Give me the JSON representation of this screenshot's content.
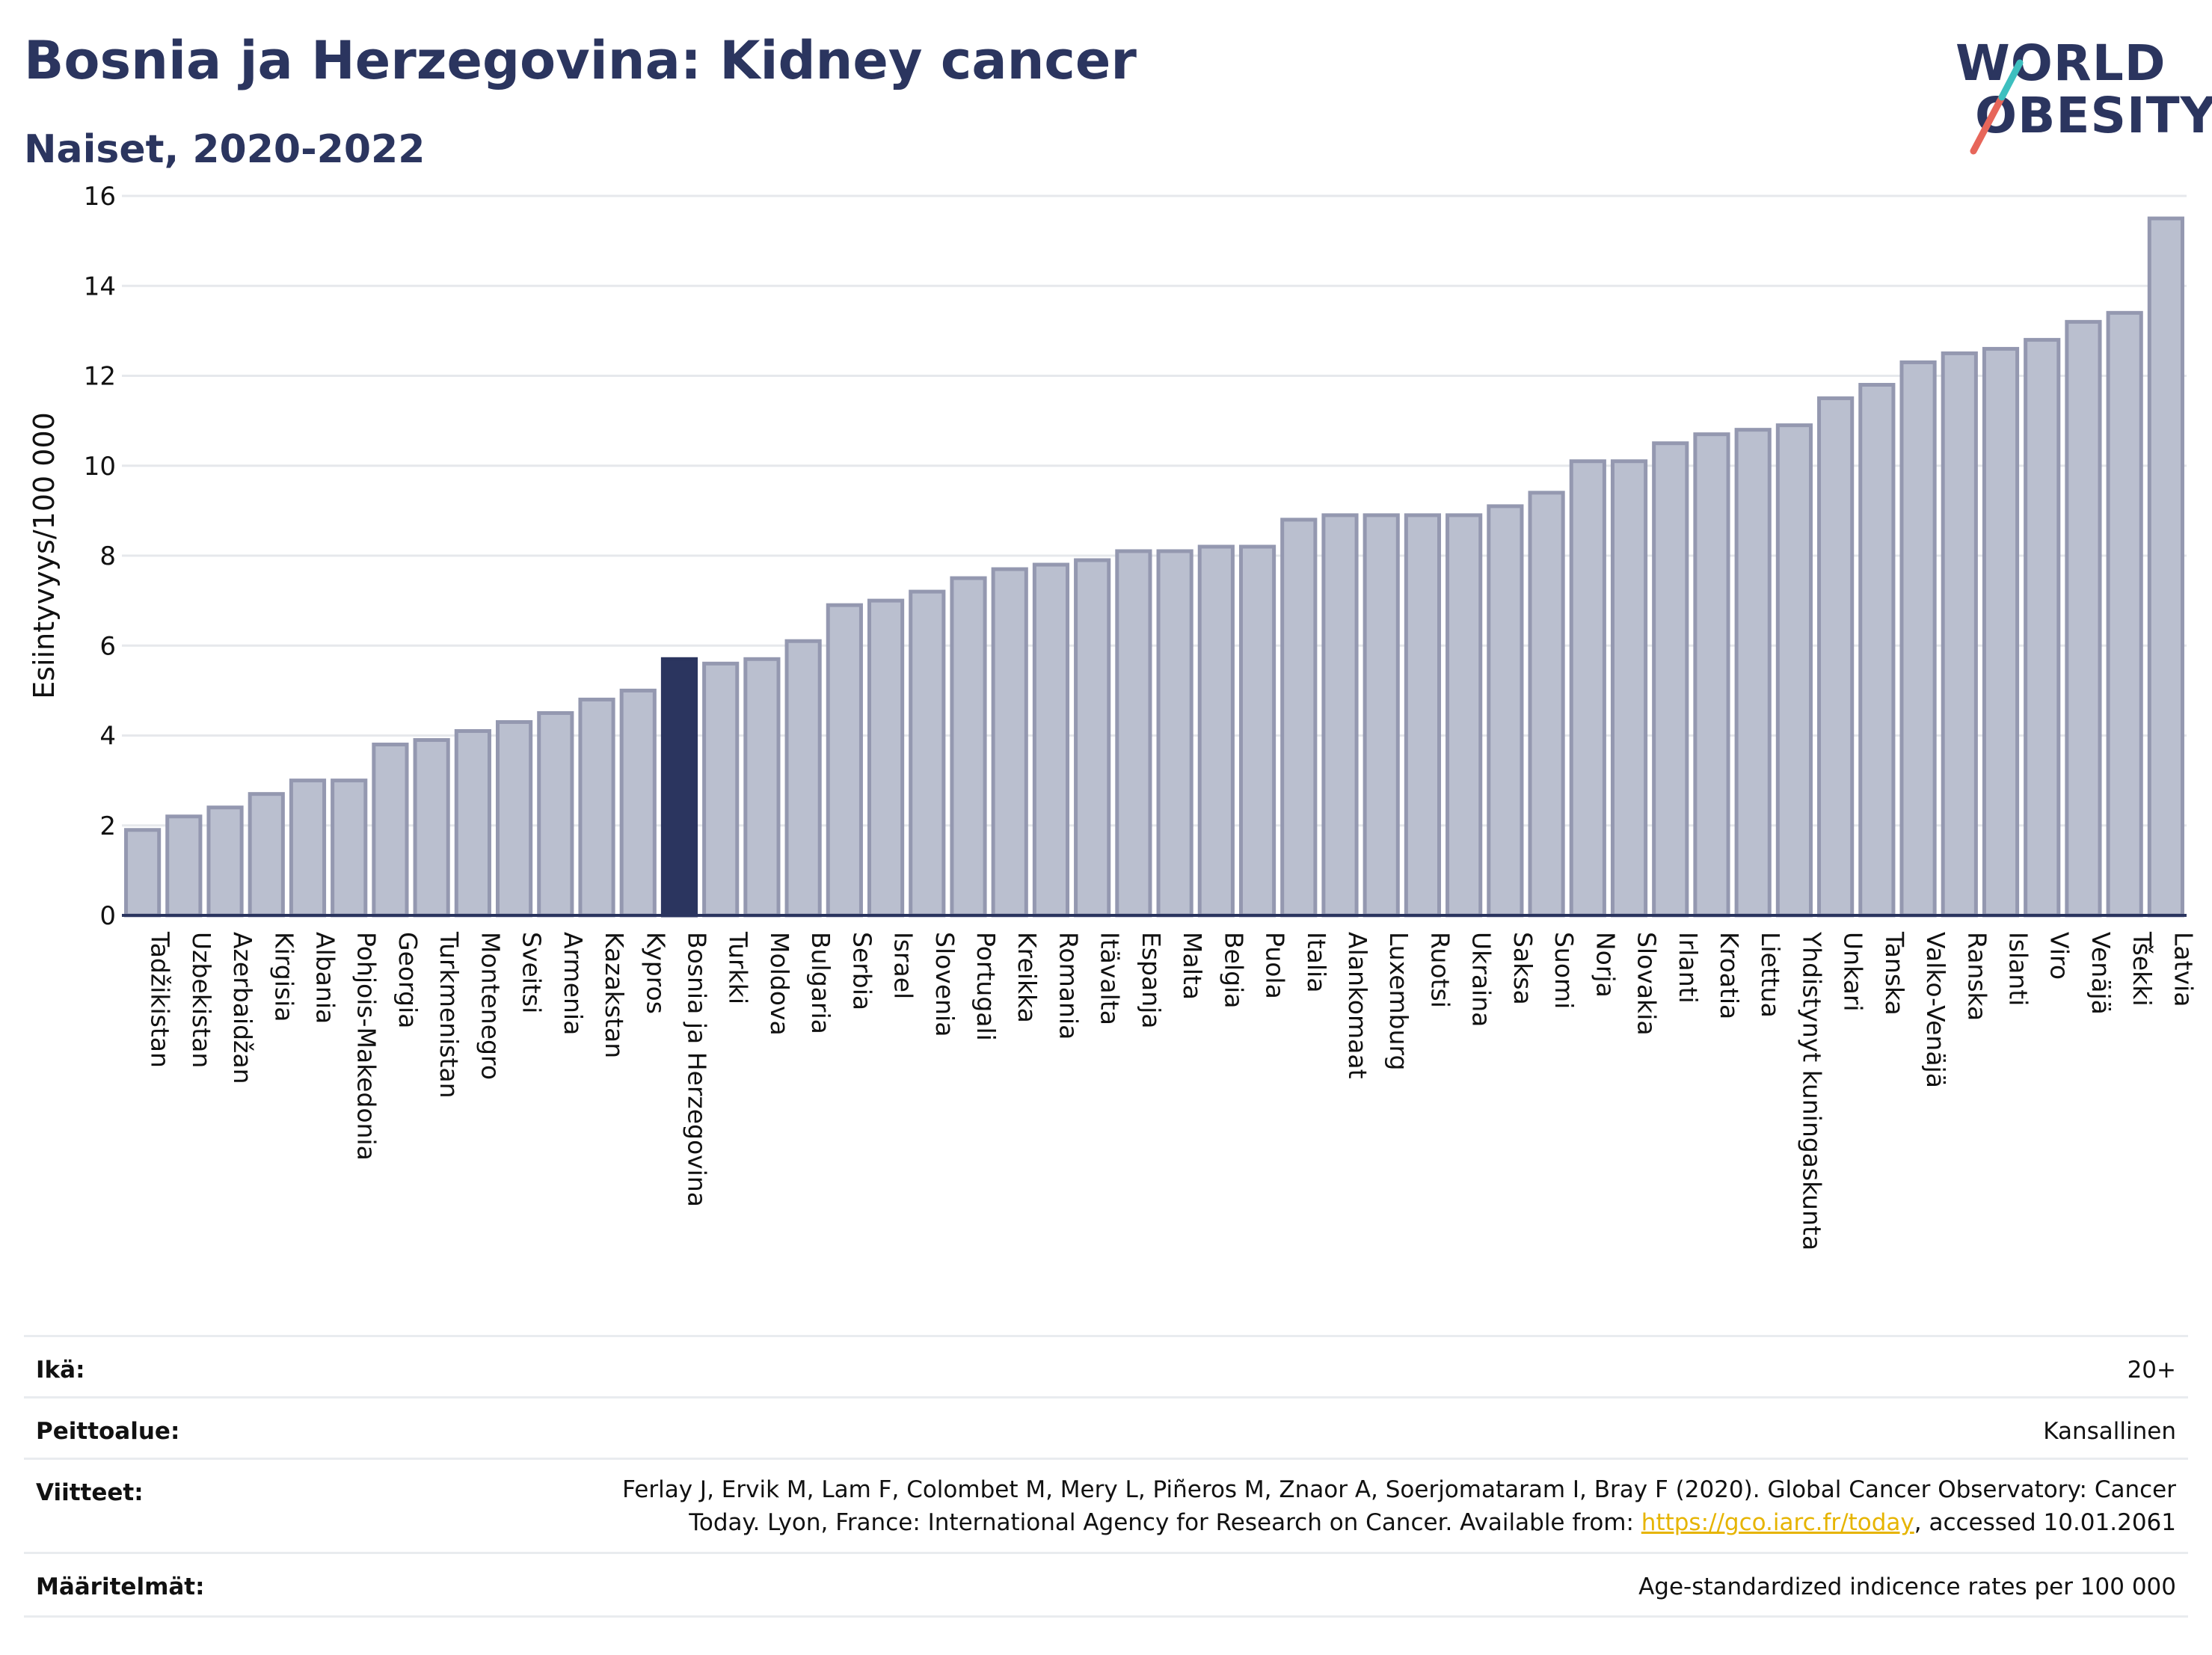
{
  "header": {
    "title": "Bosnia ja Herzegovina: Kidney cancer",
    "subtitle": "Naiset, 2020-2022"
  },
  "logo": {
    "line1": "WORLD",
    "line2": "OBESITY",
    "accent_colors": [
      "#e7665a",
      "#3dbfbf"
    ]
  },
  "colors": {
    "bar": "#babfcf",
    "bar_border": "#9498b0",
    "highlight": "#2b355f",
    "grid": "#e6e8ec",
    "axis": "#2b355f"
  },
  "chart_data": {
    "type": "bar",
    "ylabel": "Esiintyvyys/100 000",
    "xlabel": "",
    "ylim": [
      0,
      16
    ],
    "yticks": [
      0,
      2,
      4,
      6,
      8,
      10,
      12,
      14,
      16
    ],
    "grid": true,
    "highlight": "Bosnia ja Herzegovina",
    "categories": [
      "Tadžikistan",
      "Uzbekistan",
      "Azerbaidžan",
      "Kirgisia",
      "Albania",
      "Pohjois-Makedonia",
      "Georgia",
      "Turkmenistan",
      "Montenegro",
      "Sveitsi",
      "Armenia",
      "Kazakstan",
      "Kypros",
      "Bosnia ja Herzegovina",
      "Turkki",
      "Moldova",
      "Bulgaria",
      "Serbia",
      "Israel",
      "Slovenia",
      "Portugali",
      "Kreikka",
      "Romania",
      "Itävalta",
      "Espanja",
      "Malta",
      "Belgia",
      "Puola",
      "Italia",
      "Alankomaat",
      "Luxemburg",
      "Ruotsi",
      "Ukraina",
      "Saksa",
      "Suomi",
      "Norja",
      "Slovakia",
      "Irlanti",
      "Kroatia",
      "Liettua",
      "Yhdistynyt kuningaskunta",
      "Unkari",
      "Tanska",
      "Valko-Venäjä",
      "Ranska",
      "Islanti",
      "Viro",
      "Venäjä",
      "Tšekki",
      "Latvia"
    ],
    "values": [
      1.9,
      2.2,
      2.4,
      2.7,
      3.0,
      3.0,
      3.8,
      3.9,
      4.1,
      4.3,
      4.5,
      4.8,
      5.0,
      5.7,
      5.6,
      5.7,
      6.1,
      6.9,
      7.0,
      7.2,
      7.5,
      7.7,
      7.8,
      7.9,
      8.1,
      8.1,
      8.2,
      8.2,
      8.8,
      8.9,
      8.9,
      8.9,
      8.9,
      9.1,
      9.4,
      10.1,
      10.1,
      10.5,
      10.7,
      10.8,
      10.9,
      11.5,
      11.8,
      12.3,
      12.5,
      12.6,
      12.8,
      13.2,
      13.4,
      15.5
    ]
  },
  "meta": {
    "age_label": "Ikä:",
    "age_value": "20+",
    "coverage_label": "Peittoalue:",
    "coverage_value": "Kansallinen",
    "refs_label": "Viitteet:",
    "refs_line1": "Ferlay J, Ervik M, Lam F, Colombet M, Mery L, Piñeros M, Znaor A, Soerjomataram I, Bray F (2020). Global Cancer Observatory: Cancer",
    "refs_line2_pre": "Today. Lyon, France: International Agency for Research on Cancer. Available from: ",
    "refs_link": "https://gco.iarc.fr/today",
    "refs_line2_post": ", accessed 10.01.2061",
    "defs_label": "Määritelmät:",
    "defs_value": "Age-standardized indicence rates per 100 000"
  }
}
